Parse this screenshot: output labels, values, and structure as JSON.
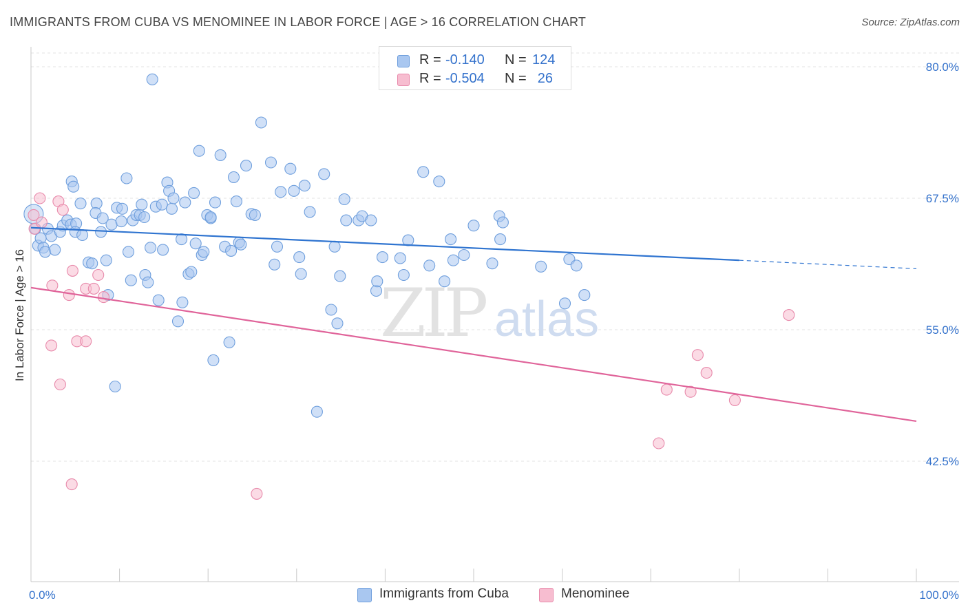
{
  "header": {
    "title": "IMMIGRANTS FROM CUBA VS MENOMINEE IN LABOR FORCE | AGE > 16 CORRELATION CHART",
    "source": "Source: ZipAtlas.com"
  },
  "watermark": {
    "part1": "ZIP",
    "part2": "atlas"
  },
  "legend_top": {
    "rows": [
      {
        "r_label": "R =",
        "r_value": "-0.140",
        "n_label": "N =",
        "n_value": "124"
      },
      {
        "r_label": "R =",
        "r_value": "-0.504",
        "n_label": "N =",
        "n_value": "26"
      }
    ]
  },
  "legend_bottom": {
    "items": [
      "Immigrants from Cuba",
      "Menominee"
    ]
  },
  "colors": {
    "blue_fill": "#a9c7f0",
    "blue_stroke": "#6f9fdd",
    "blue_line": "#2f74d0",
    "pink_fill": "#f7bdd0",
    "pink_stroke": "#e88aab",
    "pink_line": "#e0649a",
    "tick_text": "#3472cc",
    "grid": "#e3e3e3"
  },
  "chart_data": {
    "type": "scatter",
    "title": "IMMIGRANTS FROM CUBA VS MENOMINEE IN LABOR FORCE | AGE > 16 CORRELATION CHART",
    "ylabel": "In Labor Force | Age > 16",
    "xlabel": "",
    "xlim": [
      0,
      100
    ],
    "ylim": [
      32.5,
      83
    ],
    "y_ticks": [
      42.5,
      55.0,
      67.5,
      80.0
    ],
    "y_tick_labels": [
      "42.5%",
      "55.0%",
      "67.5%",
      "80.0%"
    ],
    "x_tick_labels": [
      "0.0%",
      "100.0%"
    ],
    "grid": true,
    "legend": "top-center",
    "series": [
      {
        "name": "Immigrants from Cuba",
        "R": -0.14,
        "N": 124,
        "trend": {
          "x0": 0.0,
          "y0": 64.7,
          "x1": 80.0,
          "y1": 61.6,
          "dash_to_x": 100.0,
          "dash_to_y": 60.8
        },
        "points": [
          [
            0.3,
            66.0
          ],
          [
            0.5,
            64.6
          ],
          [
            0.8,
            63.0
          ],
          [
            1.1,
            63.7
          ],
          [
            1.4,
            62.8
          ],
          [
            1.6,
            62.4
          ],
          [
            1.9,
            64.6
          ],
          [
            2.3,
            63.9
          ],
          [
            2.7,
            62.6
          ],
          [
            3.3,
            64.3
          ],
          [
            3.6,
            64.9
          ],
          [
            4.1,
            65.4
          ],
          [
            4.5,
            65.0
          ],
          [
            5.1,
            65.1
          ],
          [
            5.0,
            64.3
          ],
          [
            5.8,
            64.0
          ],
          [
            4.6,
            69.1
          ],
          [
            4.8,
            68.6
          ],
          [
            5.6,
            67.0
          ],
          [
            6.5,
            61.4
          ],
          [
            6.9,
            61.3
          ],
          [
            7.4,
            67.0
          ],
          [
            7.3,
            66.1
          ],
          [
            7.9,
            64.3
          ],
          [
            8.1,
            65.6
          ],
          [
            8.5,
            61.6
          ],
          [
            8.7,
            58.3
          ],
          [
            9.1,
            65.0
          ],
          [
            9.5,
            49.6
          ],
          [
            9.7,
            66.6
          ],
          [
            10.3,
            66.5
          ],
          [
            10.2,
            65.3
          ],
          [
            10.8,
            69.4
          ],
          [
            11.0,
            62.4
          ],
          [
            11.3,
            59.7
          ],
          [
            11.5,
            65.4
          ],
          [
            11.9,
            65.9
          ],
          [
            12.3,
            65.9
          ],
          [
            12.5,
            66.9
          ],
          [
            12.8,
            65.7
          ],
          [
            12.9,
            60.2
          ],
          [
            13.2,
            59.5
          ],
          [
            13.5,
            62.8
          ],
          [
            13.7,
            78.8
          ],
          [
            14.1,
            66.7
          ],
          [
            14.4,
            57.8
          ],
          [
            14.8,
            66.9
          ],
          [
            14.9,
            62.6
          ],
          [
            15.4,
            69.0
          ],
          [
            15.6,
            68.2
          ],
          [
            15.9,
            66.5
          ],
          [
            16.1,
            67.5
          ],
          [
            16.6,
            55.8
          ],
          [
            17.0,
            63.6
          ],
          [
            17.1,
            57.6
          ],
          [
            17.4,
            67.1
          ],
          [
            17.8,
            60.3
          ],
          [
            18.1,
            60.5
          ],
          [
            18.4,
            68.0
          ],
          [
            18.6,
            63.2
          ],
          [
            19.0,
            72.0
          ],
          [
            19.3,
            62.1
          ],
          [
            19.5,
            62.4
          ],
          [
            19.9,
            65.9
          ],
          [
            20.3,
            65.6
          ],
          [
            20.6,
            52.1
          ],
          [
            20.8,
            67.1
          ],
          [
            21.4,
            71.6
          ],
          [
            21.9,
            62.9
          ],
          [
            22.4,
            53.8
          ],
          [
            22.6,
            62.5
          ],
          [
            22.9,
            69.5
          ],
          [
            23.2,
            67.2
          ],
          [
            23.5,
            63.3
          ],
          [
            23.7,
            63.1
          ],
          [
            24.3,
            70.6
          ],
          [
            24.9,
            66.0
          ],
          [
            25.3,
            65.9
          ],
          [
            26.0,
            74.7
          ],
          [
            27.1,
            70.9
          ],
          [
            27.5,
            61.2
          ],
          [
            27.8,
            62.9
          ],
          [
            28.2,
            68.1
          ],
          [
            29.3,
            70.3
          ],
          [
            29.7,
            68.2
          ],
          [
            30.3,
            61.9
          ],
          [
            30.5,
            60.3
          ],
          [
            30.9,
            68.7
          ],
          [
            31.5,
            66.2
          ],
          [
            32.3,
            47.2
          ],
          [
            33.1,
            69.8
          ],
          [
            33.9,
            56.9
          ],
          [
            34.3,
            62.9
          ],
          [
            34.6,
            55.6
          ],
          [
            34.9,
            60.1
          ],
          [
            35.4,
            67.4
          ],
          [
            35.6,
            65.4
          ],
          [
            37.0,
            65.4
          ],
          [
            37.4,
            65.8
          ],
          [
            38.4,
            65.4
          ],
          [
            39.0,
            58.7
          ],
          [
            39.1,
            59.6
          ],
          [
            39.7,
            61.9
          ],
          [
            41.7,
            61.8
          ],
          [
            42.1,
            60.2
          ],
          [
            42.6,
            63.5
          ],
          [
            44.3,
            70.0
          ],
          [
            45.0,
            61.1
          ],
          [
            46.1,
            69.1
          ],
          [
            46.7,
            59.6
          ],
          [
            47.4,
            63.6
          ],
          [
            47.7,
            61.6
          ],
          [
            48.9,
            62.1
          ],
          [
            50.0,
            64.9
          ],
          [
            52.1,
            61.3
          ],
          [
            52.9,
            65.8
          ],
          [
            53.3,
            65.2
          ],
          [
            53.0,
            63.6
          ],
          [
            57.6,
            61.0
          ],
          [
            60.8,
            61.7
          ],
          [
            60.3,
            57.5
          ],
          [
            61.6,
            61.1
          ],
          [
            62.5,
            58.3
          ],
          [
            20.3,
            65.7
          ]
        ]
      },
      {
        "name": "Menominee",
        "R": -0.504,
        "N": 26,
        "trend": {
          "x0": 0.0,
          "y0": 59.0,
          "x1": 100.0,
          "y1": 46.3
        },
        "points": [
          [
            0.3,
            65.9
          ],
          [
            0.4,
            64.6
          ],
          [
            1.0,
            67.5
          ],
          [
            1.2,
            65.2
          ],
          [
            2.3,
            53.5
          ],
          [
            2.4,
            59.2
          ],
          [
            3.1,
            67.2
          ],
          [
            3.3,
            49.8
          ],
          [
            3.6,
            66.4
          ],
          [
            4.3,
            58.3
          ],
          [
            4.6,
            40.3
          ],
          [
            4.7,
            60.6
          ],
          [
            5.2,
            53.9
          ],
          [
            6.2,
            53.9
          ],
          [
            6.2,
            58.9
          ],
          [
            7.1,
            58.9
          ],
          [
            7.6,
            60.2
          ],
          [
            8.2,
            58.1
          ],
          [
            25.5,
            39.4
          ],
          [
            70.9,
            44.2
          ],
          [
            71.8,
            49.3
          ],
          [
            74.5,
            49.1
          ],
          [
            75.3,
            52.6
          ],
          [
            76.3,
            50.9
          ],
          [
            79.5,
            48.3
          ],
          [
            85.6,
            56.4
          ]
        ]
      }
    ]
  }
}
